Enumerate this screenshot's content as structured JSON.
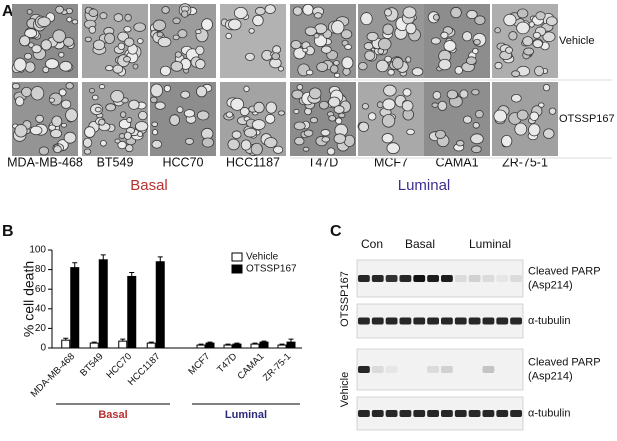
{
  "panel_a": {
    "label": "A",
    "columns": [
      "MDA-MB-468",
      "BT549",
      "HCC70",
      "HCC1187",
      "T47D",
      "MCF7",
      "CAMA1",
      "ZR-75-1"
    ],
    "rows": [
      "Vehicle",
      "OTSSP167"
    ],
    "groups": [
      {
        "label": "Basal",
        "color": "#b8312f"
      },
      {
        "label": "Luminal",
        "color": "#3b2f8f"
      }
    ]
  },
  "chart_data": {
    "type": "bar",
    "panel_label": "B",
    "y_label": "% cell death",
    "categories": [
      "MDA-MB-468",
      "BT549",
      "HCC70",
      "HCC1187",
      "MCF7",
      "T47D",
      "CAMA1",
      "ZR-75-1"
    ],
    "series": [
      {
        "name": "Vehicle",
        "color": "#ffffff",
        "values": [
          8,
          5,
          7,
          5,
          3,
          3,
          4,
          3
        ],
        "errors": [
          2,
          1,
          2,
          1,
          1,
          1,
          1,
          1
        ]
      },
      {
        "name": "OTSSP167",
        "color": "#000000",
        "values": [
          82,
          90,
          73,
          88,
          5,
          4,
          6,
          6
        ],
        "errors": [
          5,
          5,
          4,
          5,
          1,
          1,
          1,
          3
        ]
      }
    ],
    "groups": [
      {
        "label": "Basal",
        "color": "#b8312f"
      },
      {
        "label": "Luminal",
        "color": "#2d2a7a"
      }
    ],
    "ylim": [
      0,
      100
    ],
    "yticks": [
      0,
      20,
      40,
      60,
      80,
      100
    ],
    "legend": "upper right"
  },
  "panel_c": {
    "label": "C",
    "lane_groups": [
      "Con",
      "Basal",
      "Luminal"
    ],
    "treatments": [
      "OTSSP167",
      "Vehicle"
    ],
    "bands": [
      {
        "lines": [
          "Cleaved PARP",
          "(Asp214)"
        ]
      },
      {
        "lines": [
          "α-tubulin"
        ]
      }
    ]
  }
}
